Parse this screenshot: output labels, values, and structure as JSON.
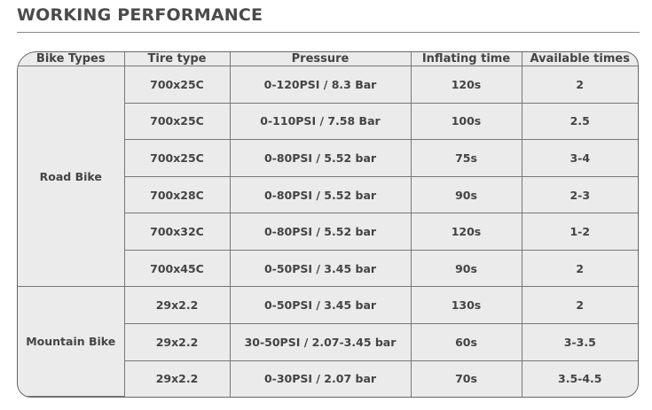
{
  "title": "WORKING PERFORMANCE",
  "headers": [
    "Bike Types",
    "Tire type",
    "Pressure",
    "Inflating time",
    "Available times"
  ],
  "groups": [
    {
      "label": "Road Bike"
    },
    {
      "label": "Mountain Bike"
    }
  ],
  "rows": [
    [
      "700x25C",
      "0-120PSI / 8.3 Bar",
      "120s",
      "2"
    ],
    [
      "700x25C",
      "0-110PSI / 7.58 Bar",
      "100s",
      "2.5"
    ],
    [
      "700x25C",
      "0-80PSI / 5.52 bar",
      "75s",
      "3-4"
    ],
    [
      "700x28C",
      "0-80PSI / 5.52 bar",
      "90s",
      "2-3"
    ],
    [
      "700x32C",
      "0-80PSI / 5.52 bar",
      "120s",
      "1-2"
    ],
    [
      "700x45C",
      "0-50PSI / 3.45 bar",
      "90s",
      "2"
    ],
    [
      "29x2.2",
      "0-50PSI / 3.45 bar",
      "130s",
      "2"
    ],
    [
      "29x2.2",
      "30-50PSI / 2.07-3.45 bar",
      "60s",
      "3-3.5"
    ],
    [
      "29x2.2",
      "0-30PSI / 2.07 bar",
      "70s",
      "3.5-4.5"
    ]
  ]
}
